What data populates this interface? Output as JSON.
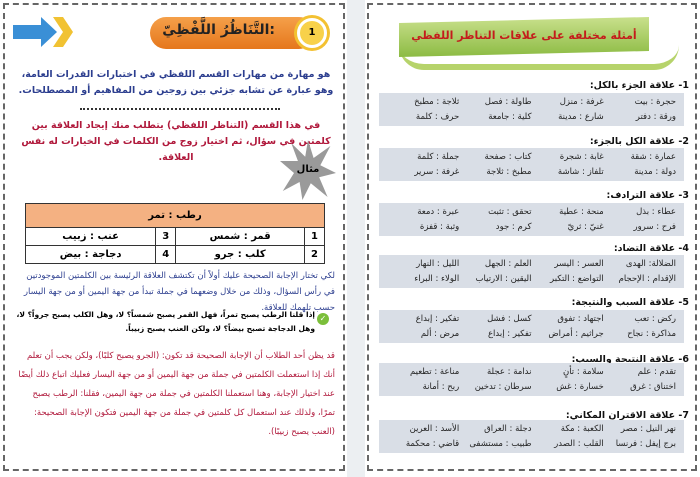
{
  "left": {
    "number": "1",
    "title": "التَّنَاظُرُ اللَّفْظِيّ:",
    "intro": "هو مهارة من مهارات القسم اللفظي في اختبارات القدرات العامة، وهو عبارة عن تشابه جزئي بين زوجين من المفاهيم أو المصطلحات.",
    "task": "في هذا القسم (التناظر اللفظي) يتطلب منك إيجاد العلاقة بين كلمتين في سؤال، ثم اختيار زوج من الكلمات في الخيارات له نفس العلاقة.",
    "example_label": "مثال",
    "question": "رطب : تمر",
    "options": [
      {
        "n": "1",
        "text": "قمر : شمس"
      },
      {
        "n": "3",
        "text": "عنب : زبيب"
      },
      {
        "n": "2",
        "text": "كلب : جرو"
      },
      {
        "n": "4",
        "text": "دجاجة : بيض"
      }
    ],
    "explain": "لكي تختار الإجابة الصحيحة عليك أولاً أن تكتشف العلاقة الرئيسة بين الكلمتين الموجودتين في رأس السؤال، وذلك من خلال وضعهما في جملة تبدأ من جهة اليمين أو من جهة اليسار حسب تلهمك للعلاقة.",
    "check": "إذا قلنا الرطب يصبح تمراً، فهل القمر يصبح شمساً؟ لا، وهل الكلب يصبح جرواً؟ لا، وهل الدجاجة تصبح بيضاً؟ لا، ولكن العنب يصبح زبيباً.",
    "warning": "قد يظن أحد الطلاب أن الإجابة الصحيحة قد تكون: (الجرو يصبح كلبًا)، ولكن يجب أن تعلم أنك إذا استعملت الكلمتين في جملة من جهة اليمين أو من جهة اليسار فعليك اتباع ذلك أيضًا عند اختيار الإجابة، وهنا استعملنا الكلمتين في جملة من جهة اليمين، فقلنا: الرطب يصبح تمرًا، ولذلك عند استعمال كل كلمتين في جملة من جهة اليمين فتكون الإجابة الصحيحة: (العنب يصبح زبيبًا)."
  },
  "right": {
    "banner": "أمثلة مختلفة على علاقات التناظر اللفظي",
    "sections": [
      {
        "title": "1- علاقة الجزء بالكل:",
        "items": [
          "حجرة : بيت",
          "غرفة : منزل",
          "طاولة : فصل",
          "ثلاجة : مطبخ",
          "ورقة : دفتر",
          "شارع : مدينة",
          "كلية : جامعة",
          "حرف : كلمة"
        ]
      },
      {
        "title": "2- علاقة الكل بالجزء:",
        "items": [
          "عمارة : شقة",
          "غابة : شجرة",
          "كتاب : صفحة",
          "جملة : كلمة",
          "دولة : مدينة",
          "تلفاز : شاشة",
          "مطبخ : ثلاجة",
          "غرفة : سرير"
        ]
      },
      {
        "title": "3- علاقة الترادف:",
        "items": [
          "عطاء : بذل",
          "منحة : عطية",
          "تحقق : تثبت",
          "عبرة : دمعة",
          "فرح : سرور",
          "غنيّ : ثريّ",
          "كرم : جود",
          "وثبة : قفزة"
        ]
      },
      {
        "title": "4- علاقة التضاد:",
        "items": [
          "الضلالة: الهدى",
          "العسر : اليسر",
          "العلم : الجهل",
          "الليل : النهار",
          "الإقدام : الإحجام",
          "التواضع : التكبر",
          "اليقين : الارتياب",
          "الولاء : البراء"
        ]
      },
      {
        "title": "5- علاقة السبب والنتيجة:",
        "items": [
          "ركض : تعب",
          "اجتهاد : تفوق",
          "كسل : فشل",
          "تفكير : إبداع",
          "مذاكرة : نجاح",
          "جراثيم : أمراض",
          "تفكير : إبداع",
          "مرض : ألم"
        ]
      },
      {
        "title": "6- علاقة النتيجة والسبب:",
        "items": [
          "تقدم : علم",
          "سلامة : تأنٍ",
          "ندامة : عجلة",
          "مناعة : تطعيم",
          "اختناق : غرق",
          "خسارة : غش",
          "سرطان : تدخين",
          "ربح : أمانة"
        ]
      },
      {
        "title": "7- علاقة الاقتران المكاني:",
        "items": [
          "نهر النيل : مصر",
          "الكعبة : مكة",
          "دجلة : العراق",
          "الأسد : العرين",
          "برج إيفل : فرنسا",
          "القلب : الصدر",
          "طبيب : مستشفى",
          "قاضي : محكمة"
        ]
      }
    ]
  }
}
